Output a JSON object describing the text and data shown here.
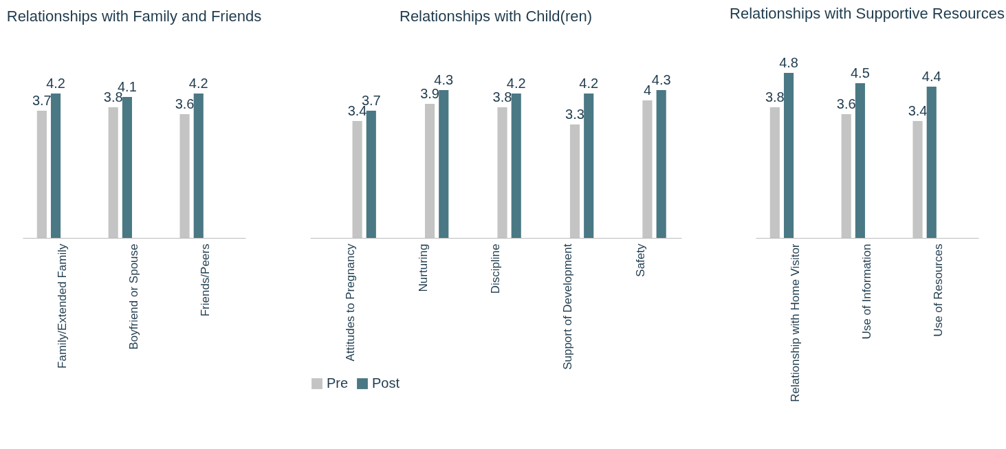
{
  "chart_data": [
    {
      "type": "bar",
      "title": "Relationships with Family and Friends",
      "categories": [
        "Family/Extended Family",
        "Boyfriend or Spouse",
        "Friends/Peers"
      ],
      "series": [
        {
          "color": "#c4c4c4",
          "values": [
            3.7,
            3.8,
            3.6
          ]
        },
        {
          "color": "#4a7884",
          "values": [
            4.2,
            4.1,
            4.2
          ]
        }
      ],
      "data_labels": true,
      "tick_labels": "x"
    },
    {
      "type": "bar",
      "title": "Relationships with Child(ren)",
      "categories": [
        "Attitudes to Pregnancy",
        "Nurturing",
        "Discipline",
        "Support of Development",
        "Safety"
      ],
      "series": [
        {
          "name": "Pre",
          "color": "#c4c4c4",
          "values": [
            3.4,
            3.9,
            3.8,
            3.3,
            4
          ]
        },
        {
          "name": "Post",
          "color": "#4a7884",
          "values": [
            3.7,
            4.3,
            4.2,
            4.2,
            4.3
          ]
        }
      ],
      "data_labels": true,
      "tick_labels": "x",
      "legend": "bottom"
    },
    {
      "type": "bar",
      "title": "Relationships with Supportive Resources",
      "categories": [
        "Relationship with Home Visitor",
        "Use of Information",
        "Use of Resources"
      ],
      "series": [
        {
          "color": "#c4c4c4",
          "values": [
            3.8,
            3.6,
            3.4
          ]
        },
        {
          "color": "#4a7884",
          "values": [
            4.8,
            4.5,
            4.4
          ]
        }
      ],
      "data_labels": true,
      "tick_labels": "x"
    }
  ]
}
